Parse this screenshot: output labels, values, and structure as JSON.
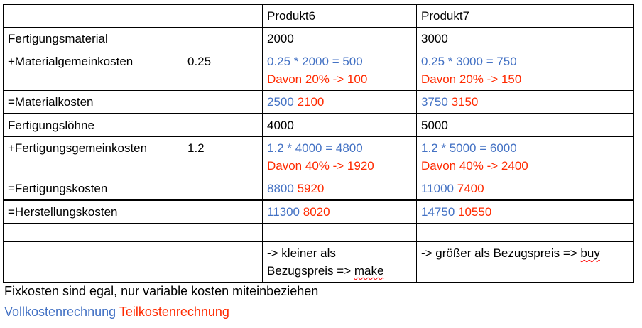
{
  "table": {
    "header": [
      "",
      "",
      "Produkt6",
      "Produkt7"
    ],
    "rows": [
      {
        "label": "Fertigungsmaterial",
        "rate": "",
        "p6": [
          "2000"
        ],
        "p7": [
          "3000"
        ]
      },
      {
        "label": "+Materialgemeinkosten",
        "rate": "0.25",
        "p6_line1": "0.25 * 2000 = 500",
        "p6_line2": "Davon 20% -> 100",
        "p7_line1": "0.25 * 3000 = 750",
        "p7_line2": "Davon 20% -> 150"
      },
      {
        "label": "=Materialkosten",
        "rate": "",
        "p6_full": "2500",
        "p6_partial": "2100",
        "p7_full": "3750",
        "p7_partial": "3150"
      },
      {
        "label": "Fertigungslöhne",
        "rate": "",
        "p6": "4000",
        "p7": "5000"
      },
      {
        "label": "+Fertigungsgemeinkosten",
        "rate": "1.2",
        "p6_line1": "1.2 * 4000 = 4800",
        "p6_line2": "Davon 40% -> 1920",
        "p7_line1": "1.2 * 5000 = 6000",
        "p7_line2": "Davon 40% -> 2400"
      },
      {
        "label": "=Fertigungskosten",
        "rate": "",
        "p6_full": "8800",
        "p6_partial": "5920",
        "p7_full": "11000",
        "p7_partial": "7400"
      },
      {
        "label": "=Herstellungskosten",
        "rate": "",
        "p6_full": "11300",
        "p6_partial": "8020",
        "p7_full": "14750",
        "p7_partial": "10550"
      },
      {
        "label": "",
        "rate": "",
        "p6": "",
        "p7": ""
      },
      {
        "label": "",
        "rate": "",
        "p6_line1": "-> kleiner als",
        "p6_line2_prefix": "Bezugspreis => ",
        "p6_line2_word": "make",
        "p7_prefix": "-> größer als Bezugspreis => ",
        "p7_word": "buy"
      }
    ]
  },
  "notes": {
    "line1": "Fixkosten sind egal, nur variable kosten miteinbeziehen",
    "legend_full": "Vollkostenrechnung",
    "legend_partial": "Teilkostenrechnung"
  },
  "colors": {
    "full_cost": "#4472c4",
    "partial_cost": "#ff2a00",
    "spellcheck": "#ff0000"
  }
}
